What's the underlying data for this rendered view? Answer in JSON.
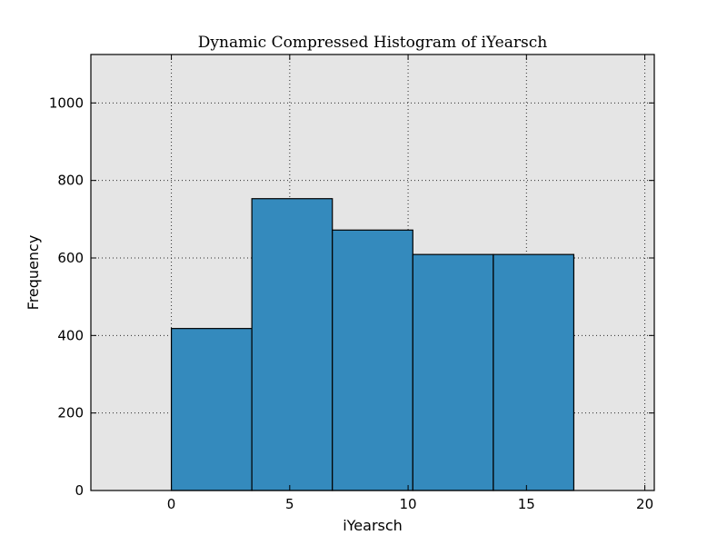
{
  "chart_data": {
    "type": "bar",
    "title": "Dynamic Compressed Histogram of iYearsch",
    "xlabel": "iYearsch",
    "ylabel": "Frequency",
    "xlim": [
      -3.4,
      20.4
    ],
    "ylim": [
      0,
      1125
    ],
    "xticks": [
      0,
      5,
      10,
      15,
      20
    ],
    "yticks": [
      0,
      200,
      400,
      600,
      800,
      1000
    ],
    "grid": true,
    "bar_color": "#348abd",
    "background_color": "#e5e5e5",
    "bins": [
      {
        "start": 0.0,
        "end": 3.4,
        "value": 418
      },
      {
        "start": 3.4,
        "end": 6.8,
        "value": 753
      },
      {
        "start": 6.8,
        "end": 10.2,
        "value": 672
      },
      {
        "start": 10.2,
        "end": 13.6,
        "value": 609
      },
      {
        "start": 13.6,
        "end": 17.0,
        "value": 609
      }
    ]
  }
}
